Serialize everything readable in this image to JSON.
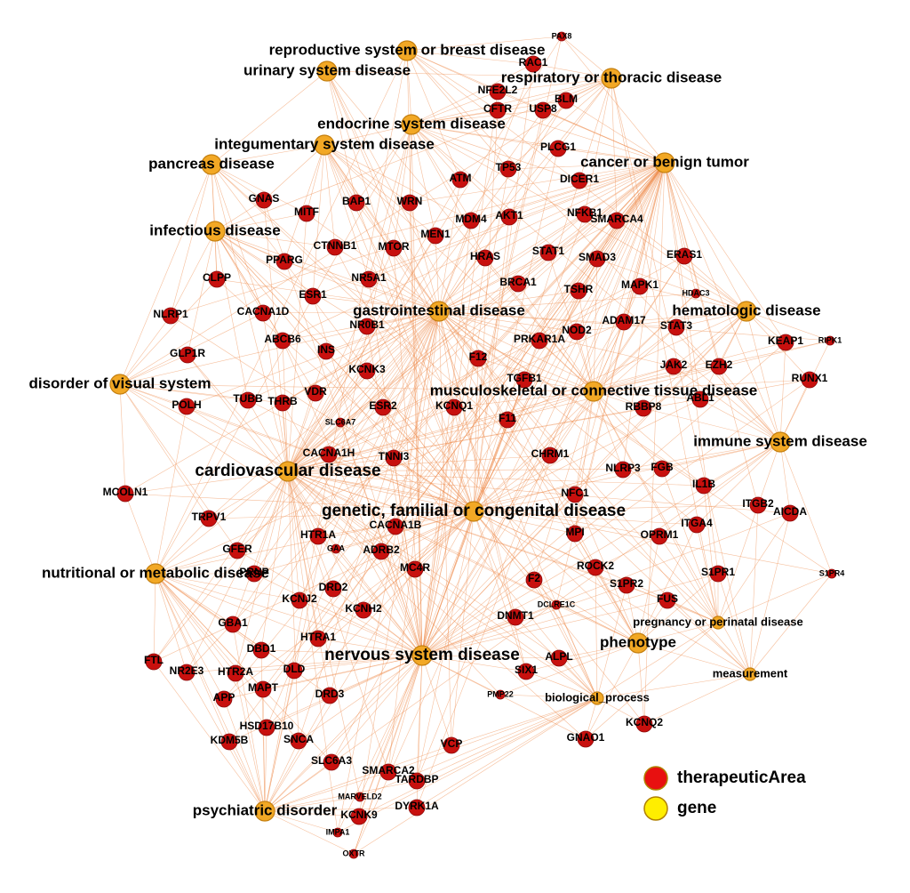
{
  "diseases": [
    "reproductive system or breast disease",
    "urinary system disease",
    "respiratory or thoracic disease",
    "endocrine system disease",
    "integumentary system disease",
    "pancreas disease",
    "cancer or benign tumor",
    "infectious disease",
    "gastrointestinal disease",
    "hematologic disease",
    "disorder of visual system",
    "musculoskeletal or connective tissue disease",
    "immune system disease",
    "cardiovascular disease",
    "genetic, familial or congenital disease",
    "nutritional or metabolic disease",
    "pregnancy or perinatal disease",
    "phenotype",
    "nervous system disease",
    "measurement",
    "biological_process",
    "psychiatric disorder"
  ],
  "genes": [
    "PAX8",
    "RAC1",
    "NFE2L2",
    "BLM",
    "CFTR",
    "USP8",
    "PLCG1",
    "TP53",
    "ATM",
    "DICER1",
    "GNAS",
    "BAP1",
    "WRN",
    "MITF",
    "AKT1",
    "NFKB1",
    "SMARCA4",
    "MDM4",
    "MEN1",
    "CTNNB1",
    "MTOR",
    "PPARG",
    "HRAS",
    "STAT1",
    "SMAD3",
    "ERAS1",
    "CLPP",
    "NR5A1",
    "BRCA1",
    "TSHR",
    "MAPK1",
    "HDAC3",
    "ESR1",
    "CACNA1D",
    "NLRP1",
    "NR0B1",
    "INS",
    "ABCB6",
    "KCNK3",
    "NOD2",
    "ADAM17",
    "STAT3",
    "KEAP1",
    "RIPK1",
    "PRKAR1A",
    "GLP1R",
    "F12",
    "TGFB1",
    "JAK2",
    "EZH2",
    "RUNX1",
    "TUBB",
    "THRB",
    "VDR",
    "ESR2",
    "KCNQ1",
    "POLH",
    "F11",
    "RBBP8",
    "ABL1",
    "SLC6A7",
    "CACNA1H",
    "TNNI3",
    "CHRM1",
    "NLRP3",
    "FGB",
    "MCOLN1",
    "NFC1",
    "IL1B",
    "ITGB2",
    "AICDA",
    "TRPV1",
    "HTR1A",
    "CACNA1B",
    "MPI",
    "OPRM1",
    "ITGA4",
    "GFER",
    "GAA",
    "ADRB2",
    "MC4R",
    "ROCK2",
    "S1PR1",
    "S1PR4",
    "F2",
    "S1PR2",
    "PRNP",
    "DRD2",
    "KCNJ2",
    "KCNH2",
    "FUS",
    "DNMT1",
    "DCLRE1C",
    "GBA1",
    "HTRA1",
    "DBD1",
    "FTL",
    "NR2E3",
    "HTR2A",
    "DLD",
    "ALPL",
    "SIX1",
    "MAPT",
    "DRD3",
    "APP",
    "PMP22",
    "HSD17B10",
    "KDM5B",
    "SNCA",
    "KCNQ2",
    "GNAO1",
    "VCP",
    "SLC6A3",
    "SMARCA2",
    "TARDBP",
    "MARVELD2",
    "KCNK9",
    "DYRK1A",
    "IMPA1",
    "OXTR"
  ],
  "legend": [
    {
      "label": "therapeuticArea",
      "color": "#e81010"
    },
    {
      "label": "gene",
      "color": "#ffee00"
    }
  ]
}
